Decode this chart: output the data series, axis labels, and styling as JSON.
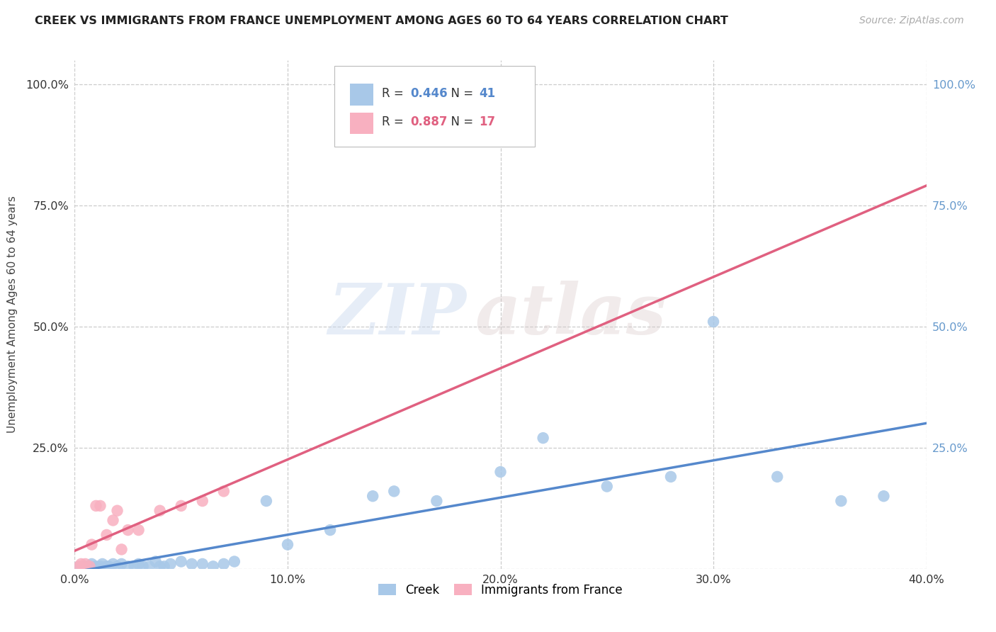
{
  "title": "CREEK VS IMMIGRANTS FROM FRANCE UNEMPLOYMENT AMONG AGES 60 TO 64 YEARS CORRELATION CHART",
  "source": "Source: ZipAtlas.com",
  "ylabel": "Unemployment Among Ages 60 to 64 years",
  "xlim": [
    0.0,
    0.4
  ],
  "ylim": [
    0.0,
    1.05
  ],
  "xticks": [
    0.0,
    0.1,
    0.2,
    0.3,
    0.4
  ],
  "xticklabels": [
    "0.0%",
    "10.0%",
    "20.0%",
    "30.0%",
    "40.0%"
  ],
  "yticks": [
    0.0,
    0.25,
    0.5,
    0.75,
    1.0
  ],
  "ytick_left_labels": [
    "",
    "25.0%",
    "50.0%",
    "75.0%",
    "100.0%"
  ],
  "ytick_right_labels": [
    "",
    "25.0%",
    "50.0%",
    "75.0%",
    "100.0%"
  ],
  "creek_R": 0.446,
  "creek_N": 41,
  "france_R": 0.887,
  "france_N": 17,
  "creek_scatter_color": "#a8c8e8",
  "france_scatter_color": "#f8b0c0",
  "creek_line_color": "#5588cc",
  "france_line_color": "#e06080",
  "creek_x": [
    0.002,
    0.005,
    0.007,
    0.008,
    0.01,
    0.012,
    0.013,
    0.015,
    0.016,
    0.018,
    0.02,
    0.022,
    0.025,
    0.028,
    0.03,
    0.032,
    0.035,
    0.038,
    0.04,
    0.042,
    0.045,
    0.05,
    0.055,
    0.06,
    0.065,
    0.07,
    0.075,
    0.09,
    0.1,
    0.12,
    0.14,
    0.15,
    0.17,
    0.2,
    0.22,
    0.25,
    0.28,
    0.3,
    0.33,
    0.36,
    0.38
  ],
  "creek_y": [
    0.005,
    0.005,
    0.005,
    0.01,
    0.005,
    0.005,
    0.01,
    0.005,
    0.005,
    0.01,
    0.005,
    0.01,
    0.005,
    0.005,
    0.01,
    0.005,
    0.005,
    0.015,
    0.005,
    0.005,
    0.01,
    0.015,
    0.01,
    0.01,
    0.005,
    0.01,
    0.015,
    0.14,
    0.05,
    0.08,
    0.15,
    0.16,
    0.14,
    0.2,
    0.27,
    0.17,
    0.19,
    0.51,
    0.19,
    0.14,
    0.15
  ],
  "france_x": [
    0.002,
    0.003,
    0.005,
    0.007,
    0.008,
    0.01,
    0.012,
    0.015,
    0.018,
    0.02,
    0.022,
    0.025,
    0.03,
    0.04,
    0.05,
    0.06,
    0.07
  ],
  "france_y": [
    0.005,
    0.01,
    0.01,
    0.005,
    0.05,
    0.13,
    0.13,
    0.07,
    0.1,
    0.12,
    0.04,
    0.08,
    0.08,
    0.12,
    0.13,
    0.14,
    0.16
  ],
  "watermark_zip": "ZIP",
  "watermark_atlas": "atlas",
  "background_color": "#ffffff",
  "grid_color": "#cccccc",
  "tick_color_left": "#333333",
  "tick_color_right": "#6699cc"
}
